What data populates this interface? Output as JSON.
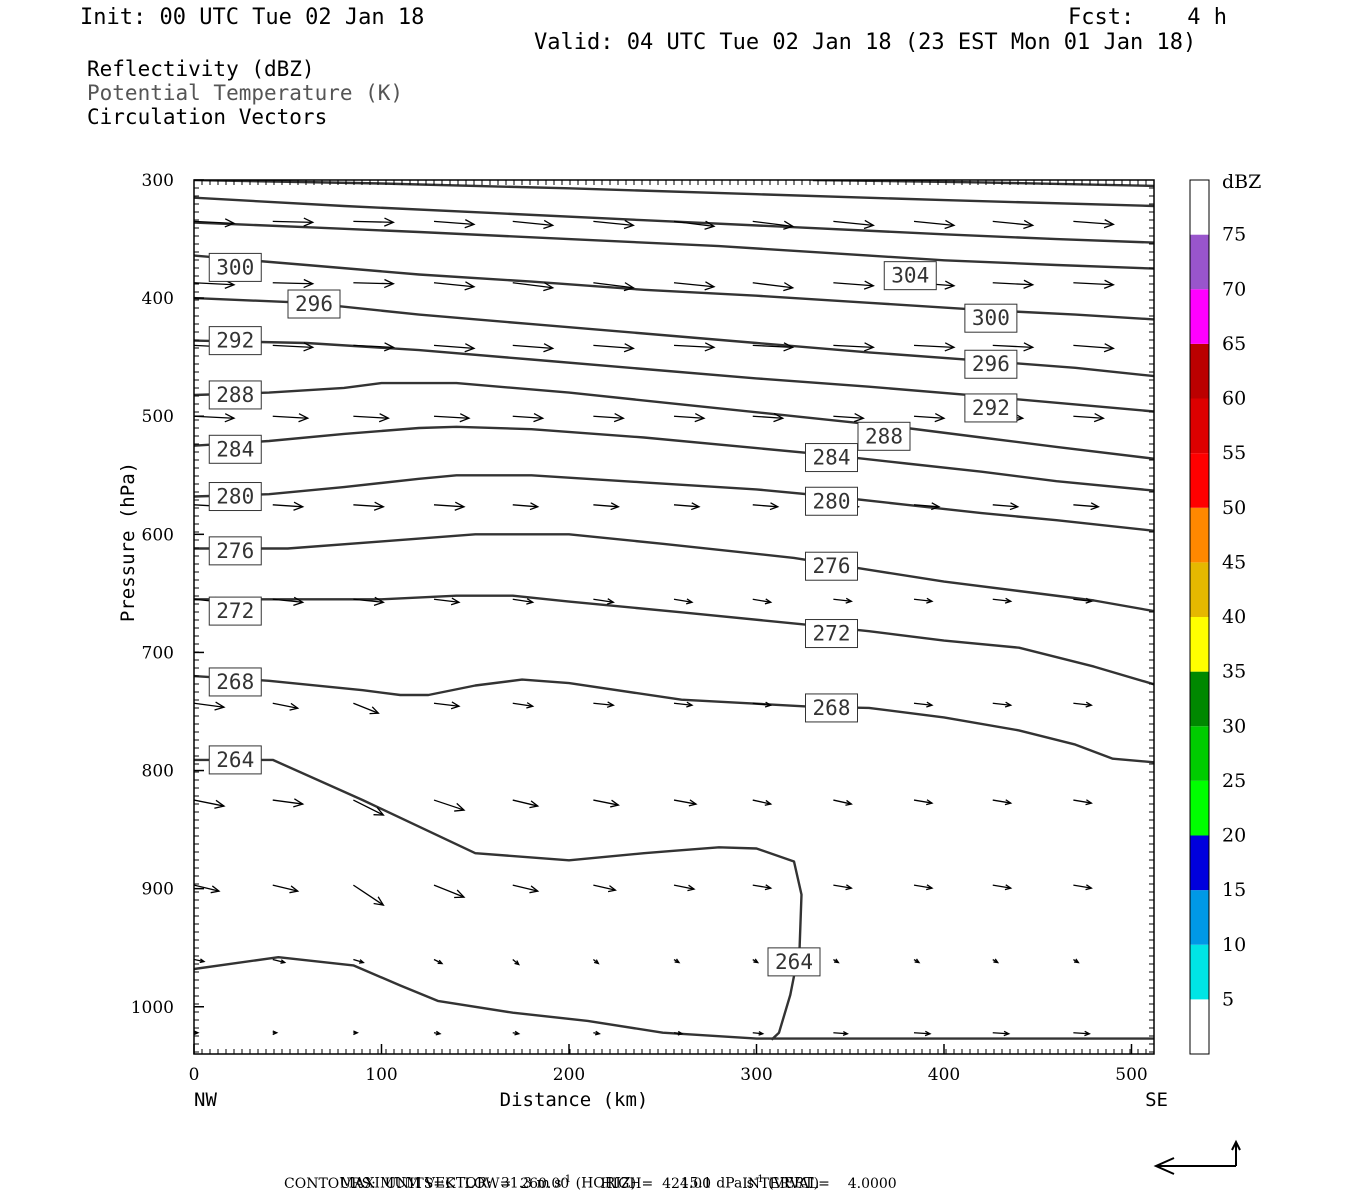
{
  "header": {
    "init": "Init: 00 UTC Tue 02 Jan 18",
    "fcst": "Fcst:    4 h",
    "valid": "Valid: 04 UTC Tue 02 Jan 18 (23 EST Mon 01 Jan 18)"
  },
  "legend_lines": {
    "reflectivity": "Reflectivity (dBZ)",
    "theta": "Potential Temperature (K)",
    "vectors": "Circulation Vectors"
  },
  "footer": {
    "maxvec_label": "MAXIMUM VECTOR:",
    "maxvec_h_value": "31.3",
    "maxvec_h_unit_pre": "m s",
    "maxvec_h_exp": "-1",
    "maxvec_h_tag": "(HORIZ)",
    "maxvec_v_value": "15.1",
    "maxvec_v_unit_pre": "dPa s",
    "maxvec_v_exp": "-1",
    "maxvec_v_tag": "(VERT)",
    "contours": "CONTOURS:  UNITS=K  LOW=  260.00       HIGH=  424.00       INTERVAL=    4.0000"
  },
  "colors": {
    "contour": "#333333",
    "vector": "#000000",
    "frame": "#000000"
  },
  "chart_data": {
    "type": "cross-section",
    "xlabel": "Distance (km)",
    "ylabel": "Pressure (hPa)",
    "xlim": [
      0,
      512
    ],
    "ylim": [
      1040,
      300
    ],
    "x_ticks": [
      0,
      100,
      200,
      300,
      400,
      500
    ],
    "y_ticks": [
      300,
      400,
      500,
      600,
      700,
      800,
      900,
      1000
    ],
    "x_end_labels": {
      "left": "NW",
      "right": "SE"
    },
    "colorbar": {
      "title": "dBZ",
      "levels": [
        5,
        10,
        15,
        20,
        25,
        30,
        35,
        40,
        45,
        50,
        55,
        60,
        65,
        70,
        75
      ],
      "colors": [
        "#ffffff",
        "#00e5e5",
        "#0099e6",
        "#0000dd",
        "#00ff00",
        "#00cc00",
        "#008800",
        "#ffff00",
        "#e5b800",
        "#ff8800",
        "#ff0000",
        "#dd0000",
        "#bb0000",
        "#ff00ff",
        "#9955cc",
        "#ffffff"
      ]
    },
    "theta_contours": [
      {
        "level": 264,
        "label": "264",
        "points": [
          [
            0,
            791
          ],
          [
            42,
            791
          ],
          [
            90,
            825
          ],
          [
            150,
            870
          ],
          [
            200,
            876
          ],
          [
            240,
            870
          ],
          [
            255,
            868
          ],
          [
            280,
            865
          ],
          [
            300,
            866
          ],
          [
            320,
            877
          ],
          [
            324,
            905
          ],
          [
            323,
            950
          ],
          [
            318,
            990
          ],
          [
            312,
            1022
          ],
          [
            308,
            1028
          ]
        ],
        "labels": [
          [
            22,
            791
          ],
          [
            320,
            962
          ]
        ]
      },
      {
        "level": 264,
        "label": "",
        "points": [
          [
            0,
            968
          ],
          [
            45,
            958
          ],
          [
            85,
            965
          ],
          [
            110,
            982
          ],
          [
            130,
            995
          ],
          [
            170,
            1005
          ],
          [
            210,
            1012
          ],
          [
            250,
            1022
          ],
          [
            300,
            1027
          ],
          [
            512,
            1027
          ]
        ],
        "labels": []
      },
      {
        "level": 268,
        "label": "268",
        "points": [
          [
            0,
            720
          ],
          [
            40,
            724
          ],
          [
            90,
            732
          ],
          [
            110,
            736
          ],
          [
            125,
            736
          ],
          [
            150,
            728
          ],
          [
            175,
            723
          ],
          [
            200,
            726
          ],
          [
            260,
            740
          ],
          [
            330,
            746
          ],
          [
            360,
            747
          ],
          [
            400,
            755
          ],
          [
            440,
            766
          ],
          [
            470,
            778
          ],
          [
            490,
            790
          ],
          [
            512,
            793
          ]
        ],
        "labels": [
          [
            22,
            725
          ],
          [
            340,
            747
          ]
        ]
      },
      {
        "level": 272,
        "label": "272",
        "points": [
          [
            0,
            655
          ],
          [
            50,
            655
          ],
          [
            100,
            655
          ],
          [
            140,
            652
          ],
          [
            170,
            652
          ],
          [
            200,
            657
          ],
          [
            260,
            666
          ],
          [
            330,
            677
          ],
          [
            360,
            682
          ],
          [
            400,
            690
          ],
          [
            440,
            696
          ],
          [
            480,
            712
          ],
          [
            512,
            727
          ]
        ],
        "labels": [
          [
            22,
            665
          ],
          [
            340,
            684
          ]
        ]
      },
      {
        "level": 276,
        "label": "276",
        "points": [
          [
            0,
            612
          ],
          [
            50,
            612
          ],
          [
            100,
            606
          ],
          [
            150,
            600
          ],
          [
            200,
            600
          ],
          [
            250,
            608
          ],
          [
            320,
            620
          ],
          [
            360,
            630
          ],
          [
            400,
            640
          ],
          [
            440,
            648
          ],
          [
            480,
            656
          ],
          [
            512,
            665
          ]
        ],
        "labels": [
          [
            22,
            614
          ],
          [
            340,
            627
          ]
        ]
      },
      {
        "level": 280,
        "label": "280",
        "points": [
          [
            0,
            568
          ],
          [
            40,
            566
          ],
          [
            80,
            560
          ],
          [
            120,
            553
          ],
          [
            140,
            550
          ],
          [
            180,
            550
          ],
          [
            240,
            556
          ],
          [
            300,
            562
          ],
          [
            340,
            568
          ],
          [
            380,
            575
          ],
          [
            420,
            582
          ],
          [
            460,
            588
          ],
          [
            512,
            597
          ]
        ],
        "labels": [
          [
            22,
            568
          ],
          [
            340,
            572
          ]
        ]
      },
      {
        "level": 284,
        "label": "284",
        "points": [
          [
            0,
            525
          ],
          [
            40,
            521
          ],
          [
            80,
            515
          ],
          [
            120,
            510
          ],
          [
            140,
            509
          ],
          [
            180,
            511
          ],
          [
            240,
            518
          ],
          [
            300,
            527
          ],
          [
            340,
            533
          ],
          [
            380,
            540
          ],
          [
            420,
            547
          ],
          [
            460,
            555
          ],
          [
            512,
            563
          ]
        ],
        "labels": [
          [
            22,
            528
          ],
          [
            340,
            535
          ]
        ]
      },
      {
        "level": 288,
        "label": "288",
        "points": [
          [
            0,
            482
          ],
          [
            40,
            480
          ],
          [
            80,
            476
          ],
          [
            100,
            472
          ],
          [
            140,
            472
          ],
          [
            200,
            480
          ],
          [
            260,
            490
          ],
          [
            320,
            500
          ],
          [
            380,
            510
          ],
          [
            420,
            518
          ],
          [
            460,
            526
          ],
          [
            512,
            536
          ]
        ],
        "labels": [
          [
            22,
            482
          ],
          [
            368,
            517
          ]
        ]
      },
      {
        "level": 292,
        "label": "292",
        "points": [
          [
            0,
            436
          ],
          [
            60,
            438
          ],
          [
            120,
            444
          ],
          [
            180,
            452
          ],
          [
            240,
            460
          ],
          [
            300,
            468
          ],
          [
            360,
            475
          ],
          [
            420,
            483
          ],
          [
            470,
            490
          ],
          [
            512,
            496
          ]
        ],
        "labels": [
          [
            22,
            436
          ],
          [
            425,
            493
          ]
        ]
      },
      {
        "level": 296,
        "label": "296",
        "points": [
          [
            0,
            400
          ],
          [
            60,
            404
          ],
          [
            120,
            414
          ],
          [
            180,
            422
          ],
          [
            240,
            430
          ],
          [
            300,
            438
          ],
          [
            360,
            446
          ],
          [
            420,
            453
          ],
          [
            470,
            459
          ],
          [
            512,
            466
          ]
        ],
        "labels": [
          [
            64,
            405
          ],
          [
            425,
            456
          ]
        ]
      },
      {
        "level": 300,
        "label": "300",
        "points": [
          [
            0,
            364
          ],
          [
            60,
            372
          ],
          [
            120,
            380
          ],
          [
            180,
            386
          ],
          [
            240,
            393
          ],
          [
            300,
            398
          ],
          [
            360,
            404
          ],
          [
            420,
            410
          ],
          [
            470,
            414
          ],
          [
            512,
            418
          ]
        ],
        "labels": [
          [
            22,
            374
          ],
          [
            425,
            417
          ]
        ]
      },
      {
        "level": 304,
        "label": "304",
        "points": [
          [
            0,
            336
          ],
          [
            60,
            340
          ],
          [
            120,
            344
          ],
          [
            200,
            350
          ],
          [
            280,
            356
          ],
          [
            340,
            362
          ],
          [
            400,
            368
          ],
          [
            460,
            372
          ],
          [
            512,
            375
          ]
        ],
        "labels": [
          [
            382,
            381
          ]
        ]
      },
      {
        "level": 308,
        "label": "",
        "points": [
          [
            0,
            315
          ],
          [
            80,
            322
          ],
          [
            160,
            328
          ],
          [
            240,
            334
          ],
          [
            320,
            340
          ],
          [
            400,
            346
          ],
          [
            460,
            350
          ],
          [
            512,
            353
          ]
        ],
        "labels": []
      },
      {
        "level": 312,
        "label": "",
        "points": [
          [
            0,
            300
          ],
          [
            100,
            303
          ],
          [
            200,
            307
          ],
          [
            300,
            312
          ],
          [
            400,
            317
          ],
          [
            512,
            322
          ]
        ],
        "labels": []
      },
      {
        "level": 316,
        "label": "",
        "points": [
          [
            330,
            300
          ],
          [
            420,
            302
          ],
          [
            512,
            305
          ]
        ],
        "labels": []
      }
    ],
    "vectors": {
      "columns_km": [
        0,
        42,
        85,
        128,
        170,
        213,
        256,
        298,
        341,
        384,
        426,
        469,
        512
      ],
      "rows": [
        {
          "p": 335,
          "dx": [
            40,
            40,
            40,
            40,
            40,
            40,
            40,
            40,
            40,
            40,
            40,
            40,
            40
          ],
          "dp": [
            2,
            1,
            1,
            3,
            4,
            4,
            5,
            5,
            4,
            4,
            4,
            3,
            2
          ]
        },
        {
          "p": 387,
          "dx": [
            40,
            40,
            40,
            40,
            40,
            40,
            40,
            40,
            40,
            40,
            40,
            40,
            40
          ],
          "dp": [
            2,
            1,
            1,
            4,
            5,
            5,
            4,
            5,
            3,
            3,
            2,
            2,
            2
          ]
        },
        {
          "p": 440,
          "dx": [
            40,
            40,
            40,
            40,
            40,
            40,
            40,
            40,
            40,
            40,
            40,
            40,
            40
          ],
          "dp": [
            2,
            2,
            2,
            3,
            3,
            3,
            2,
            2,
            2,
            2,
            2,
            3,
            4
          ]
        },
        {
          "p": 500,
          "dx": [
            40,
            35,
            35,
            35,
            30,
            30,
            30,
            30,
            30,
            30,
            30,
            30,
            30
          ],
          "dp": [
            2,
            2,
            2,
            2,
            2,
            2,
            2,
            2,
            2,
            2,
            2,
            2,
            2
          ]
        },
        {
          "p": 575,
          "dx": [
            35,
            30,
            30,
            30,
            25,
            25,
            25,
            25,
            25,
            25,
            25,
            25,
            25
          ],
          "dp": [
            2,
            2,
            2,
            2,
            2,
            2,
            2,
            2,
            2,
            2,
            2,
            2,
            2
          ]
        },
        {
          "p": 655,
          "dx": [
            30,
            30,
            30,
            25,
            20,
            20,
            18,
            18,
            18,
            18,
            18,
            18,
            18
          ],
          "dp": [
            3,
            3,
            3,
            3,
            3,
            3,
            3,
            3,
            2,
            2,
            2,
            2,
            2
          ]
        },
        {
          "p": 743,
          "dx": [
            30,
            25,
            25,
            25,
            20,
            20,
            18,
            18,
            18,
            18,
            18,
            18,
            18
          ],
          "dp": [
            4,
            5,
            10,
            3,
            3,
            2,
            2,
            2,
            2,
            2,
            2,
            2,
            2
          ]
        },
        {
          "p": 825,
          "dx": [
            30,
            30,
            30,
            30,
            25,
            25,
            22,
            18,
            18,
            18,
            18,
            18,
            18
          ],
          "dp": [
            6,
            4,
            15,
            10,
            6,
            5,
            4,
            4,
            4,
            3,
            3,
            3,
            3
          ]
        },
        {
          "p": 897,
          "dx": [
            25,
            25,
            30,
            30,
            25,
            22,
            20,
            18,
            18,
            18,
            18,
            18,
            18
          ],
          "dp": [
            6,
            6,
            20,
            12,
            6,
            5,
            4,
            3,
            3,
            3,
            3,
            3,
            3
          ]
        },
        {
          "p": 960,
          "dx": [
            10,
            12,
            10,
            8,
            6,
            5,
            5,
            5,
            5,
            5,
            5,
            5,
            5
          ],
          "dp": [
            2,
            3,
            3,
            4,
            5,
            4,
            3,
            3,
            3,
            3,
            3,
            3,
            3
          ]
        },
        {
          "p": 1022,
          "dx": [
            4,
            4,
            4,
            6,
            6,
            6,
            8,
            10,
            14,
            16,
            16,
            16,
            16
          ],
          "dp": [
            0,
            0,
            0,
            1,
            1,
            1,
            1,
            1,
            1,
            1,
            1,
            1,
            1
          ]
        }
      ]
    }
  }
}
